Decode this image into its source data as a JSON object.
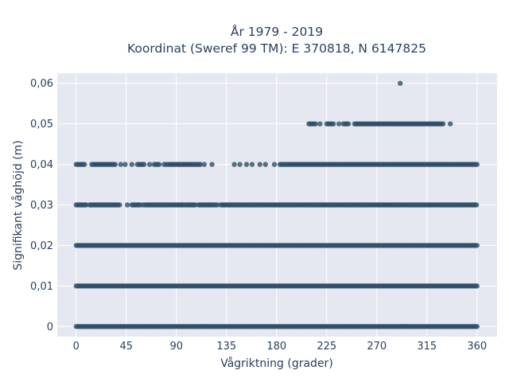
{
  "chart_data": {
    "type": "scatter",
    "title": "År 1979 - 2019",
    "subtitle": "Koordinat (Sweref 99 TM): E 370818, N 6147825",
    "xlabel": "Vågriktning (grader)",
    "ylabel": "Signifikant våghöjd (m)",
    "xlim": [
      -17,
      378
    ],
    "ylim": [
      -0.0025,
      0.0625
    ],
    "x_ticks": [
      0,
      45,
      90,
      135,
      180,
      225,
      270,
      315,
      360
    ],
    "x_tick_labels": [
      "0",
      "45",
      "90",
      "135",
      "180",
      "225",
      "270",
      "315",
      "360"
    ],
    "y_ticks": [
      0,
      0.01,
      0.02,
      0.03,
      0.04,
      0.05,
      0.06
    ],
    "y_tick_labels": [
      "0",
      "0,01",
      "0,02",
      "0,03",
      "0,04",
      "0,05",
      "0,06"
    ],
    "grid": true,
    "marker_color": "#2f4f66",
    "plot_background": "#e5e8f0",
    "series": [
      {
        "y": 0,
        "x_ranges": [
          [
            0,
            360
          ]
        ]
      },
      {
        "y": 0.01,
        "x_ranges": [
          [
            0,
            360
          ]
        ]
      },
      {
        "y": 0.02,
        "x_ranges": [
          [
            0,
            360
          ]
        ]
      },
      {
        "y": 0.03,
        "x_ranges": [
          [
            0,
            10
          ],
          [
            12,
            40
          ],
          [
            50,
            58
          ],
          [
            62,
            95
          ],
          [
            98,
            108
          ],
          [
            110,
            125
          ],
          [
            130,
            360
          ]
        ],
        "x_points": [
          46,
          60,
          96,
          127
        ]
      },
      {
        "y": 0.04,
        "x_ranges": [
          [
            0,
            8
          ],
          [
            14,
            35
          ],
          [
            55,
            62
          ],
          [
            70,
            75
          ],
          [
            83,
            112
          ],
          [
            183,
            360
          ]
        ],
        "x_points": [
          40,
          44,
          50,
          66,
          79,
          81,
          115,
          122,
          142,
          147,
          153,
          158,
          165,
          170,
          178
        ]
      },
      {
        "y": 0.05,
        "x_ranges": [
          [
            209,
            216
          ],
          [
            225,
            232
          ],
          [
            240,
            245
          ],
          [
            250,
            330
          ]
        ],
        "x_points": [
          219,
          236,
          336
        ]
      },
      {
        "y": 0.06,
        "x_points": [
          291
        ]
      }
    ]
  }
}
